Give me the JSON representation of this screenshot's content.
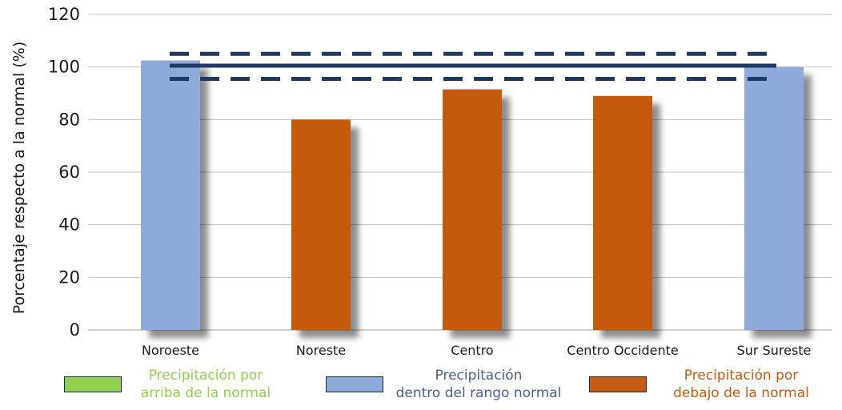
{
  "chart_data": {
    "type": "bar",
    "ylabel": "Porcentaje respecto a la normal (%)",
    "ylim": [
      0,
      120
    ],
    "yticks": [
      0,
      20,
      40,
      60,
      80,
      100,
      120
    ],
    "categories": [
      "Noroeste",
      "Noreste",
      "Centro",
      "Centro Occidente",
      "Sur Sureste"
    ],
    "values": [
      102.5,
      80,
      91.5,
      89,
      100
    ],
    "bar_colors": [
      "#8eaadb",
      "#c55a11",
      "#c55a11",
      "#c55a11",
      "#8eaadb"
    ],
    "reference_lines": [
      {
        "value": 100.5,
        "style": "solid",
        "color": "#1f3864"
      },
      {
        "value": 105,
        "style": "dashed",
        "color": "#1f3864"
      },
      {
        "value": 95.5,
        "style": "dashed",
        "color": "#1f3864"
      }
    ],
    "grid": true
  },
  "legend": [
    {
      "line1": "Precipitación por",
      "line2": "arriba de la normal",
      "color": "#92d050"
    },
    {
      "line1": "Precipitación",
      "line2": "dentro del rango normal",
      "color": "#8eaadb",
      "text_color": "#4a5f8a"
    },
    {
      "line1": "Precipitación por",
      "line2": "debajo de la normal",
      "color": "#c55a11"
    }
  ]
}
